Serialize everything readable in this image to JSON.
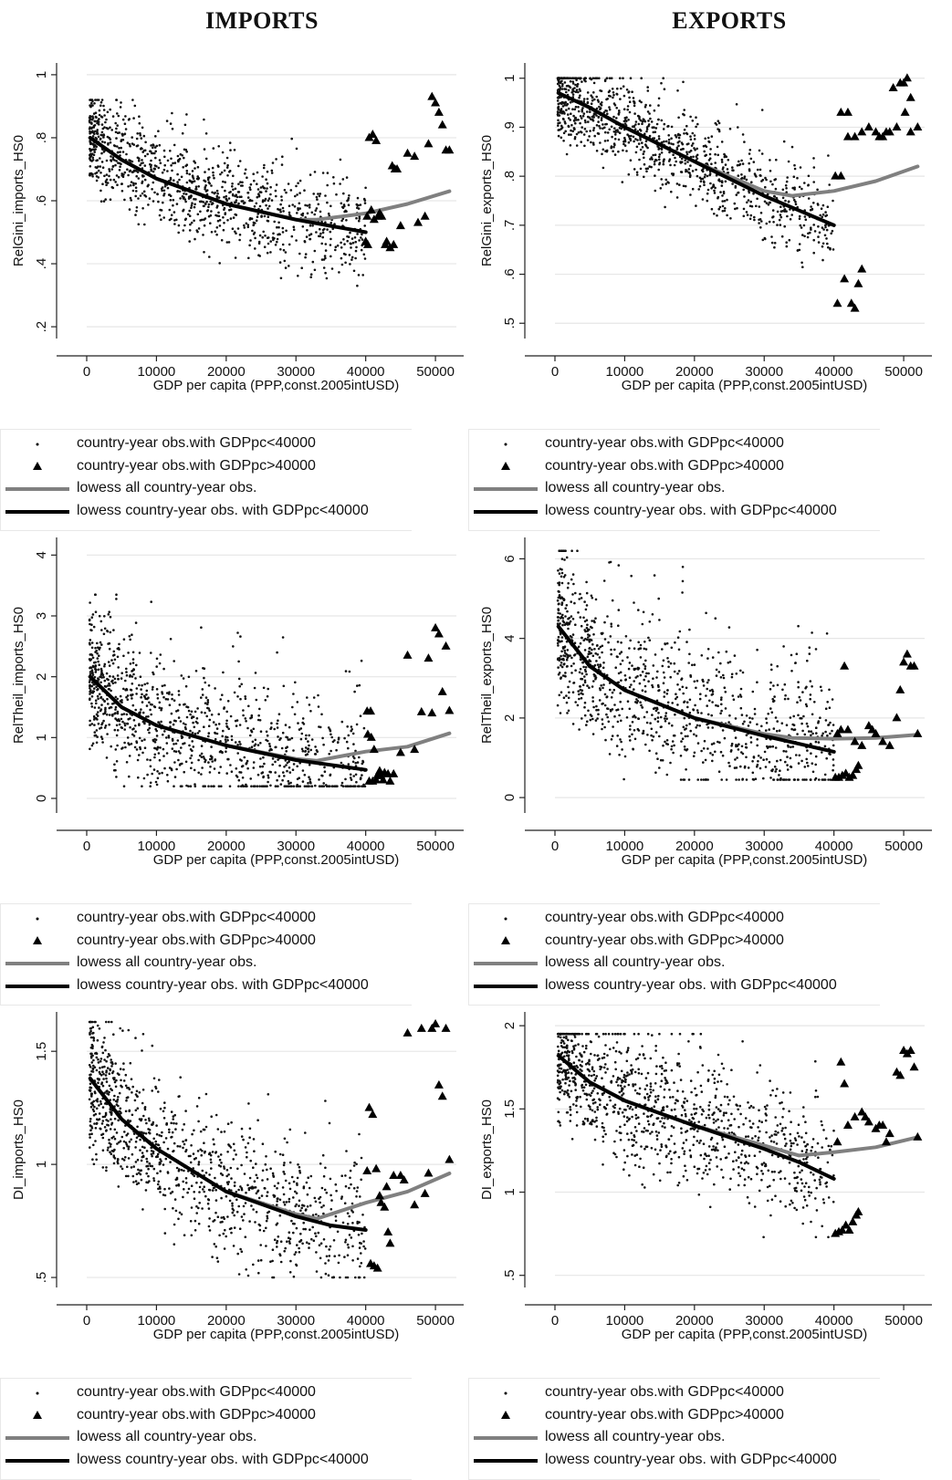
{
  "headers": {
    "left": "IMPORTS",
    "right": "EXPORTS"
  },
  "legend": {
    "items": [
      {
        "label": "country-year obs.with GDPpc<40000",
        "symbol": "dot"
      },
      {
        "label": "country-year obs.with GDPpc>40000",
        "symbol": "triangle"
      },
      {
        "label": "lowess all country-year obs.",
        "symbol": "gray-line"
      },
      {
        "label": "lowess country-year obs. with GDPpc<40000",
        "symbol": "black-line"
      }
    ]
  },
  "colors": {
    "dots": "#111111",
    "lowess_all": "#808080",
    "lowess_sub": "#000000",
    "grid": "#e6e6e6"
  },
  "chart_data": [
    {
      "type": "scatter",
      "panel": "imports-gini",
      "xlabel": "GDP per capita (PPP,const.2005intUSD)",
      "ylabel": "RelGini_imports_HS0",
      "xlim": [
        0,
        53000
      ],
      "ylim": [
        0.18,
        1.02
      ],
      "xticks": [
        0,
        10000,
        20000,
        30000,
        40000,
        50000
      ],
      "xtick_labels": [
        "0",
        "10000",
        "20000",
        "30000",
        "40000",
        "50000"
      ],
      "yticks": [
        0.2,
        0.4,
        0.6,
        0.8,
        1
      ],
      "ytick_labels": [
        ".2",
        ".4",
        ".6",
        ".8",
        "1"
      ],
      "grid": true,
      "lowess_all": {
        "x": [
          500,
          5000,
          10000,
          20000,
          30000,
          33000,
          40000,
          46000,
          52000
        ],
        "y": [
          0.8,
          0.73,
          0.67,
          0.59,
          0.54,
          0.54,
          0.56,
          0.59,
          0.63
        ]
      },
      "lowess_lt40000": {
        "x": [
          500,
          5000,
          10000,
          20000,
          30000,
          35000,
          40000
        ],
        "y": [
          0.8,
          0.73,
          0.67,
          0.59,
          0.54,
          0.52,
          0.5
        ]
      },
      "triangles": {
        "x": [
          40500,
          41000,
          41500,
          42000,
          40200,
          40800,
          41200,
          41800,
          42300,
          43000,
          43500,
          44000,
          44200,
          45000,
          46000,
          47000,
          47500,
          48500,
          49000,
          49500,
          50000,
          50500,
          51000,
          51500,
          52000,
          43800,
          44500,
          40000,
          40300,
          42800
        ],
        "y": [
          0.8,
          0.81,
          0.79,
          0.56,
          0.55,
          0.57,
          0.54,
          0.55,
          0.55,
          0.47,
          0.45,
          0.46,
          0.7,
          0.52,
          0.75,
          0.74,
          0.53,
          0.55,
          0.78,
          0.93,
          0.91,
          0.88,
          0.84,
          0.76,
          0.76,
          0.71,
          0.7,
          0.47,
          0.46,
          0.46
        ]
      },
      "dots": {
        "n": 1100,
        "seed": 11,
        "x_range": [
          400,
          40000
        ],
        "spread": [
          0.1,
          0.12
        ],
        "upper": 0.92,
        "lower": 0.33
      }
    },
    {
      "type": "scatter",
      "panel": "exports-gini",
      "xlabel": "GDP per capita (PPP,const.2005intUSD)",
      "ylabel": "RelGini_exports_HS0",
      "xlim": [
        0,
        53000
      ],
      "ylim": [
        0.48,
        1.02
      ],
      "xticks": [
        0,
        10000,
        20000,
        30000,
        40000,
        50000
      ],
      "xtick_labels": [
        "0",
        "10000",
        "20000",
        "30000",
        "40000",
        "50000"
      ],
      "yticks": [
        0.5,
        0.6,
        0.7,
        0.8,
        0.9,
        1
      ],
      "ytick_labels": [
        ".5",
        ".6",
        ".7",
        ".8",
        ".9",
        "1"
      ],
      "grid": true,
      "lowess_all": {
        "x": [
          500,
          5000,
          10000,
          20000,
          30000,
          34000,
          40000,
          46000,
          52000
        ],
        "y": [
          0.97,
          0.94,
          0.9,
          0.83,
          0.77,
          0.76,
          0.77,
          0.79,
          0.82
        ]
      },
      "lowess_lt40000": {
        "x": [
          500,
          5000,
          10000,
          20000,
          30000,
          35000,
          40000
        ],
        "y": [
          0.97,
          0.94,
          0.9,
          0.83,
          0.76,
          0.73,
          0.7
        ]
      },
      "triangles": {
        "x": [
          40200,
          41000,
          42000,
          43000,
          44000,
          45000,
          46000,
          47000,
          48000,
          49000,
          50000,
          50500,
          51000,
          52000,
          42500,
          43000,
          43500,
          44000,
          40500,
          41500,
          48500,
          49500,
          50200,
          51000,
          41000,
          42000,
          47500,
          46500
        ],
        "y": [
          0.8,
          0.8,
          0.88,
          0.88,
          0.89,
          0.9,
          0.89,
          0.88,
          0.89,
          0.9,
          0.99,
          1.0,
          0.96,
          0.9,
          0.54,
          0.53,
          0.58,
          0.61,
          0.54,
          0.59,
          0.98,
          0.99,
          0.93,
          0.89,
          0.93,
          0.93,
          0.89,
          0.88
        ]
      },
      "dots": {
        "n": 1100,
        "seed": 23,
        "x_range": [
          400,
          40000
        ],
        "spread": [
          0.06,
          0.08
        ],
        "upper": 1.0,
        "lower": 0.49
      }
    },
    {
      "type": "scatter",
      "panel": "imports-theil",
      "xlabel": "GDP per capita (PPP,const.2005intUSD)",
      "ylabel": "RelTheil_imports_HS0",
      "xlim": [
        0,
        53000
      ],
      "ylim": [
        -0.15,
        4.2
      ],
      "xticks": [
        0,
        10000,
        20000,
        30000,
        40000,
        50000
      ],
      "xtick_labels": [
        "0",
        "10000",
        "20000",
        "30000",
        "40000",
        "50000"
      ],
      "yticks": [
        0,
        1,
        2,
        3,
        4
      ],
      "ytick_labels": [
        "0",
        "1",
        "2",
        "3",
        "4"
      ],
      "grid": true,
      "lowess_all": {
        "x": [
          500,
          5000,
          10000,
          20000,
          30000,
          33000,
          40000,
          46000,
          52000
        ],
        "y": [
          2.0,
          1.5,
          1.2,
          0.87,
          0.65,
          0.62,
          0.77,
          0.85,
          1.07
        ]
      },
      "lowess_lt40000": {
        "x": [
          500,
          5000,
          10000,
          20000,
          30000,
          35000,
          40000
        ],
        "y": [
          2.0,
          1.5,
          1.2,
          0.87,
          0.63,
          0.55,
          0.47
        ]
      },
      "triangles": {
        "x": [
          40200,
          40700,
          41200,
          41700,
          42200,
          42700,
          43200,
          40500,
          41000,
          41500,
          42000,
          42500,
          43500,
          44000,
          45000,
          46000,
          47000,
          48000,
          49000,
          49500,
          50000,
          50500,
          51000,
          51500,
          52000,
          40300,
          40800
        ],
        "y": [
          1.43,
          1.43,
          0.8,
          0.38,
          0.37,
          0.42,
          0.4,
          0.28,
          0.28,
          0.3,
          0.45,
          0.3,
          0.28,
          0.4,
          0.75,
          2.35,
          0.8,
          1.42,
          2.3,
          1.4,
          2.8,
          2.7,
          1.75,
          2.5,
          1.44,
          1.05,
          1.0
        ]
      },
      "dots": {
        "n": 1100,
        "seed": 37,
        "x_range": [
          400,
          40000
        ],
        "spread": [
          0.7,
          0.9
        ],
        "upper": 3.35,
        "lower": 0.2
      }
    },
    {
      "type": "scatter",
      "panel": "exports-theil",
      "xlabel": "GDP per capita (PPP,const.2005intUSD)",
      "ylabel": "RelTheil_exports_HS0",
      "xlim": [
        0,
        53000
      ],
      "ylim": [
        -0.25,
        6.4
      ],
      "xticks": [
        0,
        10000,
        20000,
        30000,
        40000,
        50000
      ],
      "xtick_labels": [
        "0",
        "10000",
        "20000",
        "30000",
        "40000",
        "50000"
      ],
      "yticks": [
        0,
        2,
        4,
        6
      ],
      "ytick_labels": [
        "0",
        "2",
        "4",
        "6"
      ],
      "grid": true,
      "lowess_all": {
        "x": [
          500,
          5000,
          10000,
          20000,
          30000,
          34000,
          40000,
          46000,
          52000
        ],
        "y": [
          4.3,
          3.3,
          2.7,
          2.0,
          1.6,
          1.5,
          1.48,
          1.5,
          1.58
        ]
      },
      "lowess_lt40000": {
        "x": [
          500,
          5000,
          10000,
          20000,
          30000,
          35000,
          40000
        ],
        "y": [
          4.3,
          3.3,
          2.7,
          2.0,
          1.55,
          1.35,
          1.15
        ]
      },
      "triangles": {
        "x": [
          40200,
          40700,
          41200,
          41700,
          42200,
          42700,
          43200,
          43500,
          40500,
          41000,
          42000,
          43000,
          44000,
          45000,
          46000,
          47000,
          48000,
          49000,
          49500,
          50000,
          50500,
          51000,
          51500,
          52000,
          41500,
          45500
        ],
        "y": [
          0.5,
          0.5,
          0.55,
          0.6,
          0.5,
          0.55,
          0.7,
          0.8,
          1.6,
          1.7,
          1.7,
          1.4,
          1.3,
          1.8,
          1.6,
          1.4,
          1.3,
          2.0,
          2.7,
          3.4,
          3.6,
          3.3,
          3.3,
          1.6,
          3.3,
          1.7
        ]
      },
      "dots": {
        "n": 1100,
        "seed": 41,
        "x_range": [
          400,
          40000
        ],
        "spread": [
          1.2,
          1.6
        ],
        "upper": 6.2,
        "lower": 0.45
      }
    },
    {
      "type": "scatter",
      "panel": "imports-di",
      "xlabel": "GDP per capita (PPP,const.2005intUSD)",
      "ylabel": "DI_imports_HS0",
      "xlim": [
        0,
        53000
      ],
      "ylim": [
        0.48,
        1.65
      ],
      "xticks": [
        0,
        10000,
        20000,
        30000,
        40000,
        50000
      ],
      "xtick_labels": [
        "0",
        "10000",
        "20000",
        "30000",
        "40000",
        "50000"
      ],
      "yticks": [
        0.5,
        1,
        1.5
      ],
      "ytick_labels": [
        ".5",
        "1",
        "1.5"
      ],
      "grid": true,
      "lowess_all": {
        "x": [
          500,
          5000,
          10000,
          20000,
          30000,
          33000,
          40000,
          46000,
          52000
        ],
        "y": [
          1.38,
          1.2,
          1.07,
          0.88,
          0.78,
          0.76,
          0.83,
          0.88,
          0.96
        ]
      },
      "lowess_lt40000": {
        "x": [
          500,
          5000,
          10000,
          20000,
          30000,
          35000,
          40000
        ],
        "y": [
          1.38,
          1.2,
          1.07,
          0.88,
          0.77,
          0.73,
          0.71
        ]
      },
      "triangles": {
        "x": [
          40200,
          40700,
          41200,
          41700,
          42200,
          42700,
          43200,
          43500,
          40500,
          41000,
          42000,
          43000,
          44000,
          45000,
          46000,
          47000,
          48000,
          49000,
          49500,
          50000,
          50500,
          51000,
          51500,
          52000,
          41500,
          45500,
          48500
        ],
        "y": [
          0.97,
          0.56,
          0.55,
          0.54,
          0.83,
          0.81,
          0.7,
          0.65,
          1.25,
          1.22,
          0.86,
          0.9,
          0.95,
          0.95,
          1.58,
          0.82,
          1.6,
          0.96,
          1.6,
          1.62,
          1.35,
          1.3,
          1.6,
          1.02,
          0.98,
          0.93,
          0.87
        ]
      },
      "dots": {
        "n": 1100,
        "seed": 53,
        "x_range": [
          400,
          40000
        ],
        "spread": [
          0.2,
          0.25
        ],
        "upper": 1.63,
        "lower": 0.5
      }
    },
    {
      "type": "scatter",
      "panel": "exports-di",
      "xlabel": "GDP per capita (PPP,const.2005intUSD)",
      "ylabel": "DI_exports_HS0",
      "xlim": [
        0,
        53000
      ],
      "ylim": [
        0.46,
        2.05
      ],
      "xticks": [
        0,
        10000,
        20000,
        30000,
        40000,
        50000
      ],
      "xtick_labels": [
        "0",
        "10000",
        "20000",
        "30000",
        "40000",
        "50000"
      ],
      "yticks": [
        0.5,
        1,
        1.5,
        2
      ],
      "ytick_labels": [
        ".5",
        "1",
        "1.5",
        "2"
      ],
      "grid": true,
      "lowess_all": {
        "x": [
          500,
          5000,
          10000,
          20000,
          30000,
          35000,
          40000,
          46000,
          52000
        ],
        "y": [
          1.82,
          1.66,
          1.55,
          1.4,
          1.28,
          1.22,
          1.24,
          1.27,
          1.33
        ]
      },
      "lowess_lt40000": {
        "x": [
          500,
          5000,
          10000,
          20000,
          30000,
          35000,
          40000
        ],
        "y": [
          1.82,
          1.66,
          1.55,
          1.4,
          1.26,
          1.18,
          1.08
        ]
      },
      "triangles": {
        "x": [
          40200,
          40700,
          41200,
          41700,
          42200,
          42700,
          43200,
          43500,
          40500,
          41000,
          42000,
          43000,
          44000,
          45000,
          46000,
          47000,
          48000,
          49000,
          49500,
          50000,
          50500,
          51000,
          51500,
          52000,
          41500,
          44500,
          46500,
          47500
        ],
        "y": [
          0.75,
          0.76,
          0.77,
          0.8,
          0.77,
          0.82,
          0.86,
          0.88,
          1.3,
          1.78,
          1.4,
          1.45,
          1.48,
          1.42,
          1.38,
          1.4,
          1.35,
          1.72,
          1.7,
          1.85,
          1.83,
          1.85,
          1.75,
          1.33,
          1.65,
          1.45,
          1.4,
          1.3
        ]
      },
      "dots": {
        "n": 1100,
        "seed": 67,
        "x_range": [
          400,
          40000
        ],
        "spread": [
          0.25,
          0.32
        ],
        "upper": 1.95,
        "lower": 0.73
      }
    }
  ]
}
